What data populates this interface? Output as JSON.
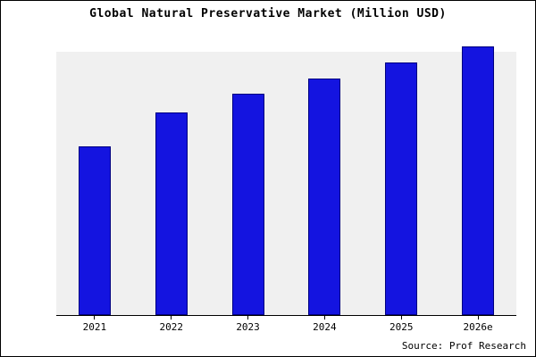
{
  "title": "Global Natural Preservative Market (Million USD)",
  "source": "Source: Prof Research",
  "chart_data": {
    "type": "bar",
    "title": "Global Natural Preservative Market (Million USD)",
    "categories": [
      "2021",
      "2022",
      "2023",
      "2024",
      "2025",
      "2026e"
    ],
    "values": [
      64,
      77,
      84,
      90,
      96,
      102
    ],
    "xlabel": "",
    "ylabel": "",
    "ylim": [
      0,
      100
    ],
    "units": "relative height (no y-axis tick labels shown in figure)",
    "grid": false,
    "legend_position": "none",
    "bar_color": "#1414e0",
    "bar_edge_color": "#000080",
    "plot_background": "#f0f0f0",
    "source_label": "Source: Prof Research"
  }
}
